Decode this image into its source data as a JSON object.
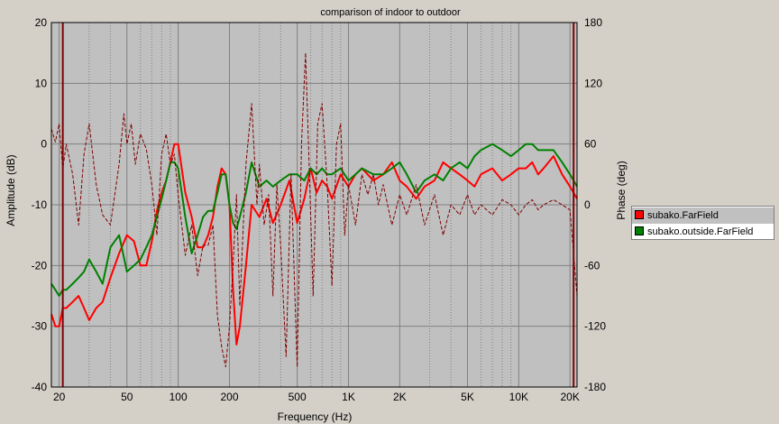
{
  "chart_data": {
    "type": "line",
    "title": "comparison of indoor to outdoor",
    "xlabel": "Frequency (Hz)",
    "ylabel": "Amplitude (dB)",
    "y2label": "Phase (deg)",
    "x_scale": "log",
    "xlim": [
      18,
      22000
    ],
    "ylim": [
      -40,
      20
    ],
    "y2lim": [
      -180,
      180
    ],
    "grid": true,
    "plot_background": "#c0c0c0",
    "grid_color": "#808080",
    "x_ticks": [
      {
        "value": 20,
        "label": "20"
      },
      {
        "value": 50,
        "label": "50"
      },
      {
        "value": 100,
        "label": "100"
      },
      {
        "value": 200,
        "label": "200"
      },
      {
        "value": 500,
        "label": "500"
      },
      {
        "value": 1000,
        "label": "1K"
      },
      {
        "value": 2000,
        "label": "2K"
      },
      {
        "value": 5000,
        "label": "5K"
      },
      {
        "value": 10000,
        "label": "10K"
      },
      {
        "value": 20000,
        "label": "20K"
      }
    ],
    "x_minor_grid": [
      30,
      40,
      60,
      70,
      80,
      90,
      300,
      400,
      600,
      700,
      800,
      900,
      3000,
      4000,
      6000,
      7000,
      8000,
      9000
    ],
    "y_ticks": [
      20,
      10,
      0,
      -10,
      -20,
      -30,
      -40
    ],
    "y2_ticks": [
      180,
      120,
      60,
      0,
      -60,
      -120,
      -180
    ],
    "markers": [
      21,
      21000
    ],
    "legend_position": "right",
    "series": [
      {
        "name": "subako.FarField",
        "axis": "amplitude",
        "color": "#ff0000",
        "x": [
          18,
          19,
          20,
          21,
          22,
          24,
          26,
          28,
          30,
          33,
          36,
          40,
          45,
          50,
          55,
          60,
          65,
          70,
          75,
          80,
          85,
          90,
          95,
          100,
          110,
          120,
          130,
          140,
          150,
          160,
          170,
          180,
          190,
          200,
          210,
          220,
          230,
          250,
          270,
          300,
          330,
          360,
          400,
          450,
          500,
          550,
          600,
          650,
          700,
          750,
          800,
          900,
          1000,
          1100,
          1200,
          1400,
          1600,
          1800,
          2000,
          2200,
          2500,
          2800,
          3200,
          3600,
          4000,
          4500,
          5000,
          5500,
          6000,
          7000,
          8000,
          9000,
          10000,
          11000,
          12000,
          13000,
          14000,
          16000,
          18000,
          20000,
          22000
        ],
        "y": [
          -28,
          -30,
          -30,
          -27,
          -27,
          -26,
          -25,
          -27,
          -29,
          -27,
          -26,
          -22,
          -18,
          -15,
          -16,
          -20,
          -20,
          -16,
          -11,
          -8,
          -6,
          -3,
          0,
          0,
          -8,
          -12,
          -17,
          -17,
          -15,
          -12,
          -7,
          -4,
          -5,
          -10,
          -24,
          -33,
          -30,
          -20,
          -10,
          -12,
          -9,
          -13,
          -10,
          -6,
          -13,
          -9,
          -4,
          -8,
          -6,
          -7,
          -9,
          -5,
          -7,
          -5,
          -4,
          -6,
          -5,
          -3,
          -6,
          -7,
          -9,
          -7,
          -6,
          -3,
          -4,
          -5,
          -6,
          -7,
          -5,
          -4,
          -6,
          -5,
          -4,
          -4,
          -3,
          -5,
          -4,
          -2,
          -5,
          -7,
          -9
        ]
      },
      {
        "name": "subako.outside.FarField",
        "axis": "amplitude",
        "color": "#008000",
        "x": [
          18,
          19,
          20,
          21,
          22,
          24,
          26,
          28,
          30,
          33,
          36,
          40,
          45,
          50,
          55,
          60,
          65,
          70,
          75,
          80,
          85,
          90,
          95,
          100,
          110,
          120,
          130,
          140,
          150,
          160,
          170,
          180,
          190,
          200,
          210,
          220,
          230,
          250,
          270,
          300,
          330,
          360,
          400,
          450,
          500,
          550,
          600,
          650,
          700,
          750,
          800,
          900,
          1000,
          1100,
          1200,
          1400,
          1600,
          1800,
          2000,
          2200,
          2500,
          2800,
          3200,
          3600,
          4000,
          4500,
          5000,
          5500,
          6000,
          7000,
          8000,
          9000,
          10000,
          11000,
          12000,
          13000,
          14000,
          16000,
          18000,
          20000,
          22000
        ],
        "y": [
          -23,
          -24,
          -25,
          -24,
          -24,
          -23,
          -22,
          -21,
          -19,
          -21,
          -23,
          -17,
          -15,
          -21,
          -20,
          -19,
          -17,
          -15,
          -12,
          -9,
          -6,
          -3,
          -3,
          -4,
          -12,
          -18,
          -15,
          -12,
          -11,
          -11,
          -8,
          -5,
          -5,
          -10,
          -13,
          -14,
          -12,
          -8,
          -3,
          -7,
          -6,
          -7,
          -6,
          -5,
          -5,
          -6,
          -4,
          -5,
          -4,
          -5,
          -5,
          -4,
          -6,
          -5,
          -4,
          -5,
          -5,
          -4,
          -3,
          -5,
          -8,
          -6,
          -5,
          -6,
          -4,
          -3,
          -4,
          -2,
          -1,
          0,
          -1,
          -2,
          -1,
          0,
          0,
          -1,
          -1,
          -1,
          -3,
          -5,
          -7
        ]
      },
      {
        "name": "",
        "axis": "phase",
        "color": "#800000",
        "dashed": true,
        "x": [
          18,
          19,
          20,
          21,
          22,
          24,
          26,
          28,
          30,
          33,
          36,
          40,
          45,
          48,
          50,
          53,
          56,
          60,
          65,
          70,
          75,
          80,
          85,
          90,
          95,
          100,
          110,
          120,
          130,
          140,
          150,
          160,
          170,
          180,
          190,
          200,
          210,
          220,
          230,
          250,
          270,
          290,
          300,
          320,
          340,
          360,
          380,
          400,
          430,
          460,
          500,
          530,
          560,
          590,
          620,
          660,
          700,
          750,
          800,
          850,
          900,
          950,
          1000,
          1100,
          1200,
          1300,
          1400,
          1500,
          1600,
          1800,
          2000,
          2200,
          2500,
          2800,
          3200,
          3600,
          4000,
          4500,
          5000,
          5500,
          6000,
          7000,
          8000,
          9000,
          10000,
          11000,
          12000,
          13000,
          14000,
          16000,
          18000,
          20000,
          22000
        ],
        "y": [
          75,
          62,
          80,
          35,
          60,
          30,
          -20,
          50,
          80,
          20,
          -10,
          -20,
          40,
          90,
          60,
          80,
          40,
          70,
          55,
          20,
          -30,
          50,
          70,
          40,
          50,
          10,
          -50,
          -20,
          -70,
          -40,
          -40,
          -20,
          -110,
          -140,
          -160,
          -120,
          -60,
          10,
          -100,
          40,
          100,
          0,
          40,
          -20,
          10,
          -90,
          20,
          -40,
          -150,
          30,
          -160,
          60,
          150,
          30,
          -90,
          80,
          100,
          20,
          -80,
          60,
          80,
          -30,
          20,
          -20,
          30,
          10,
          30,
          0,
          20,
          -20,
          10,
          -10,
          20,
          -20,
          10,
          -30,
          0,
          -10,
          10,
          -10,
          0,
          -10,
          5,
          0,
          -10,
          0,
          5,
          -5,
          0,
          5,
          0,
          -5,
          -90
        ]
      }
    ]
  }
}
